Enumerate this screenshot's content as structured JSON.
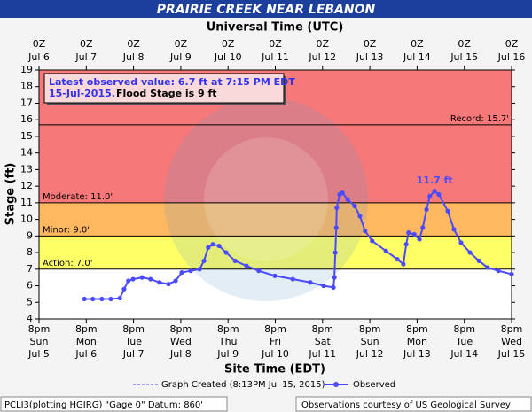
{
  "chart_data": {
    "type": "line",
    "title": "PRAIRIE CREEK NEAR LEBANON",
    "top_axis_title": "Universal Time (UTC)",
    "xlabel": "Site Time (EDT)",
    "ylabel": "Stage (ft)",
    "xlim": [
      0,
      10
    ],
    "ylim": [
      4,
      19
    ],
    "yticks": [
      4,
      5,
      6,
      7,
      8,
      9,
      10,
      11,
      12,
      13,
      14,
      15,
      16,
      17,
      18,
      19
    ],
    "xticks": [
      {
        "value": 0,
        "label": "8pm"
      },
      {
        "value": 1,
        "label": "8pm"
      },
      {
        "value": 2,
        "label": "8pm"
      },
      {
        "value": 3,
        "label": "8pm"
      },
      {
        "value": 4,
        "label": "8pm"
      },
      {
        "value": 5,
        "label": "8pm"
      },
      {
        "value": 6,
        "label": "8pm"
      },
      {
        "value": 7,
        "label": "8pm"
      },
      {
        "value": 8,
        "label": "8pm"
      },
      {
        "value": 9,
        "label": "8pm"
      },
      {
        "value": 10,
        "label": "8pm"
      }
    ],
    "xtick_weekdays": [
      "Sun",
      "Mon",
      "Tue",
      "Wed",
      "Thu",
      "Fri",
      "Sat",
      "Sun",
      "Mon",
      "Tue",
      "Wed"
    ],
    "xtick_dates": [
      "Jul 5",
      "Jul 6",
      "Jul 7",
      "Jul 8",
      "Jul 9",
      "Jul 10",
      "Jul 11",
      "Jul 12",
      "Jul 13",
      "Jul 14",
      "Jul 15"
    ],
    "x2ticks": [
      {
        "value": 0,
        "label": "0Z"
      },
      {
        "value": 1,
        "label": "0Z"
      },
      {
        "value": 2,
        "label": "0Z"
      },
      {
        "value": 3,
        "label": "0Z"
      },
      {
        "value": 4,
        "label": "0Z"
      },
      {
        "value": 5,
        "label": "0Z"
      },
      {
        "value": 6,
        "label": "0Z"
      },
      {
        "value": 7,
        "label": "0Z"
      },
      {
        "value": 8,
        "label": "0Z"
      },
      {
        "value": 9,
        "label": "0Z"
      },
      {
        "value": 10,
        "label": "0Z"
      }
    ],
    "x2tick_dates": [
      "Jul 6",
      "Jul 7",
      "Jul 8",
      "Jul 9",
      "Jul 10",
      "Jul 11",
      "Jul 12",
      "Jul 13",
      "Jul 14",
      "Jul 15",
      "Jul 16"
    ],
    "flood_stages": [
      {
        "label": "Record: 15.7'",
        "value": 15.7,
        "color": "#000000"
      },
      {
        "label": "Moderate: 11.0'",
        "value": 11.0,
        "color": "#f77878"
      },
      {
        "label": "Minor: 9.0'",
        "value": 9.0,
        "color": "#ffb860"
      },
      {
        "label": "Action: 7.0'",
        "value": 7.0,
        "color": "#ffff66"
      }
    ],
    "series": [
      {
        "name": "Observed",
        "color": "#4a4aff",
        "x": [
          0.96,
          1.14,
          1.33,
          1.52,
          1.71,
          1.8,
          1.89,
          1.99,
          2.18,
          2.36,
          2.55,
          2.74,
          2.89,
          3.02,
          3.21,
          3.4,
          3.49,
          3.58,
          3.68,
          3.81,
          3.96,
          4.15,
          4.39,
          4.65,
          4.99,
          5.37,
          5.74,
          6.02,
          6.23,
          6.25,
          6.27,
          6.29,
          6.3,
          6.36,
          6.42,
          6.53,
          6.68,
          6.79,
          6.9,
          7.05,
          7.34,
          7.58,
          7.71,
          7.77,
          7.82,
          7.94,
          8.05,
          8.12,
          8.2,
          8.27,
          8.37,
          8.46,
          8.65,
          8.78,
          8.93,
          9.12,
          9.31,
          9.49,
          9.72,
          10.0
        ],
        "values": [
          5.2,
          5.2,
          5.2,
          5.2,
          5.25,
          5.8,
          6.3,
          6.4,
          6.5,
          6.4,
          6.2,
          6.1,
          6.3,
          6.8,
          6.9,
          7.0,
          7.5,
          8.3,
          8.5,
          8.4,
          8.0,
          7.5,
          7.2,
          6.9,
          6.6,
          6.4,
          6.2,
          6.0,
          5.9,
          6.5,
          8.0,
          9.5,
          10.7,
          11.5,
          11.6,
          11.2,
          10.8,
          10.2,
          9.3,
          8.7,
          8.1,
          7.6,
          7.3,
          8.5,
          9.2,
          9.1,
          8.8,
          9.5,
          10.6,
          11.4,
          11.7,
          11.5,
          10.5,
          9.4,
          8.6,
          8.0,
          7.5,
          7.1,
          6.9,
          6.7
        ]
      }
    ],
    "annotations": [
      {
        "text": "11.7 ft",
        "x": 8.37,
        "y": 11.7
      }
    ],
    "info_box": {
      "line1": "Latest observed value: 6.7 ft at 7:15 PM EDT",
      "line2_date": "15-Jul-2015.",
      "line2_stage": "Flood Stage is 9 ft"
    },
    "legend_created": "Graph Created (8:13PM Jul 15, 2015)",
    "footer_left": "PCLI3(plotting HGIRG) \"Gage 0\" Datum: 860'",
    "footer_right": "Observations courtesy of US Geological Survey"
  }
}
